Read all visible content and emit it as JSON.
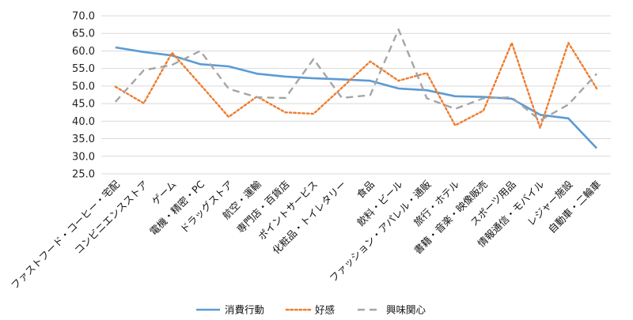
{
  "chart_data": {
    "type": "line",
    "categories": [
      "ファストフード・コーヒー・宅配",
      "コンビニエンスストア",
      "ゲーム",
      "電機・精密・PC",
      "ドラッグストア",
      "航空・運輸",
      "専門店・百貨店",
      "ポイントサービス",
      "化粧品・トイレタリー",
      "食品",
      "飲料・ビール",
      "ファッション・アパレル・通販",
      "旅行・ホテル",
      "書籍・音楽・映像販売",
      "スポーツ用品",
      "情報通信・モバイル",
      "レジャー施設",
      "自動車・二輪車"
    ],
    "series": [
      {
        "name": "消費行動",
        "color": "#5b9bd5",
        "style": "solid",
        "values": [
          61.0,
          59.7,
          58.7,
          56.2,
          55.6,
          53.5,
          52.7,
          52.2,
          51.9,
          51.5,
          49.3,
          48.8,
          47.1,
          46.9,
          46.4,
          41.8,
          40.8,
          32.3
        ]
      },
      {
        "name": "好感",
        "color": "#ed7d31",
        "style": "dotted",
        "values": [
          49.8,
          45.1,
          59.5,
          50.4,
          41.2,
          47.0,
          42.5,
          42.1,
          49.5,
          57.0,
          51.5,
          53.7,
          38.8,
          43.0,
          62.3,
          38.1,
          62.3,
          49.3
        ]
      },
      {
        "name": "興味関心",
        "color": "#a5a5a5",
        "style": "dashed",
        "values": [
          45.5,
          54.5,
          56.0,
          60.0,
          49.2,
          46.8,
          46.6,
          57.7,
          46.6,
          47.4,
          66.1,
          46.5,
          43.5,
          46.5,
          46.8,
          40.2,
          44.7,
          53.5
        ]
      }
    ],
    "ylim": [
      25.0,
      70.0
    ],
    "ytick_step": 5.0,
    "ytick_labels": [
      "25.0",
      "30.0",
      "35.0",
      "40.0",
      "45.0",
      "50.0",
      "55.0",
      "60.0",
      "65.0",
      "70.0"
    ],
    "grid": "horizontal",
    "legend_position": "bottom"
  }
}
